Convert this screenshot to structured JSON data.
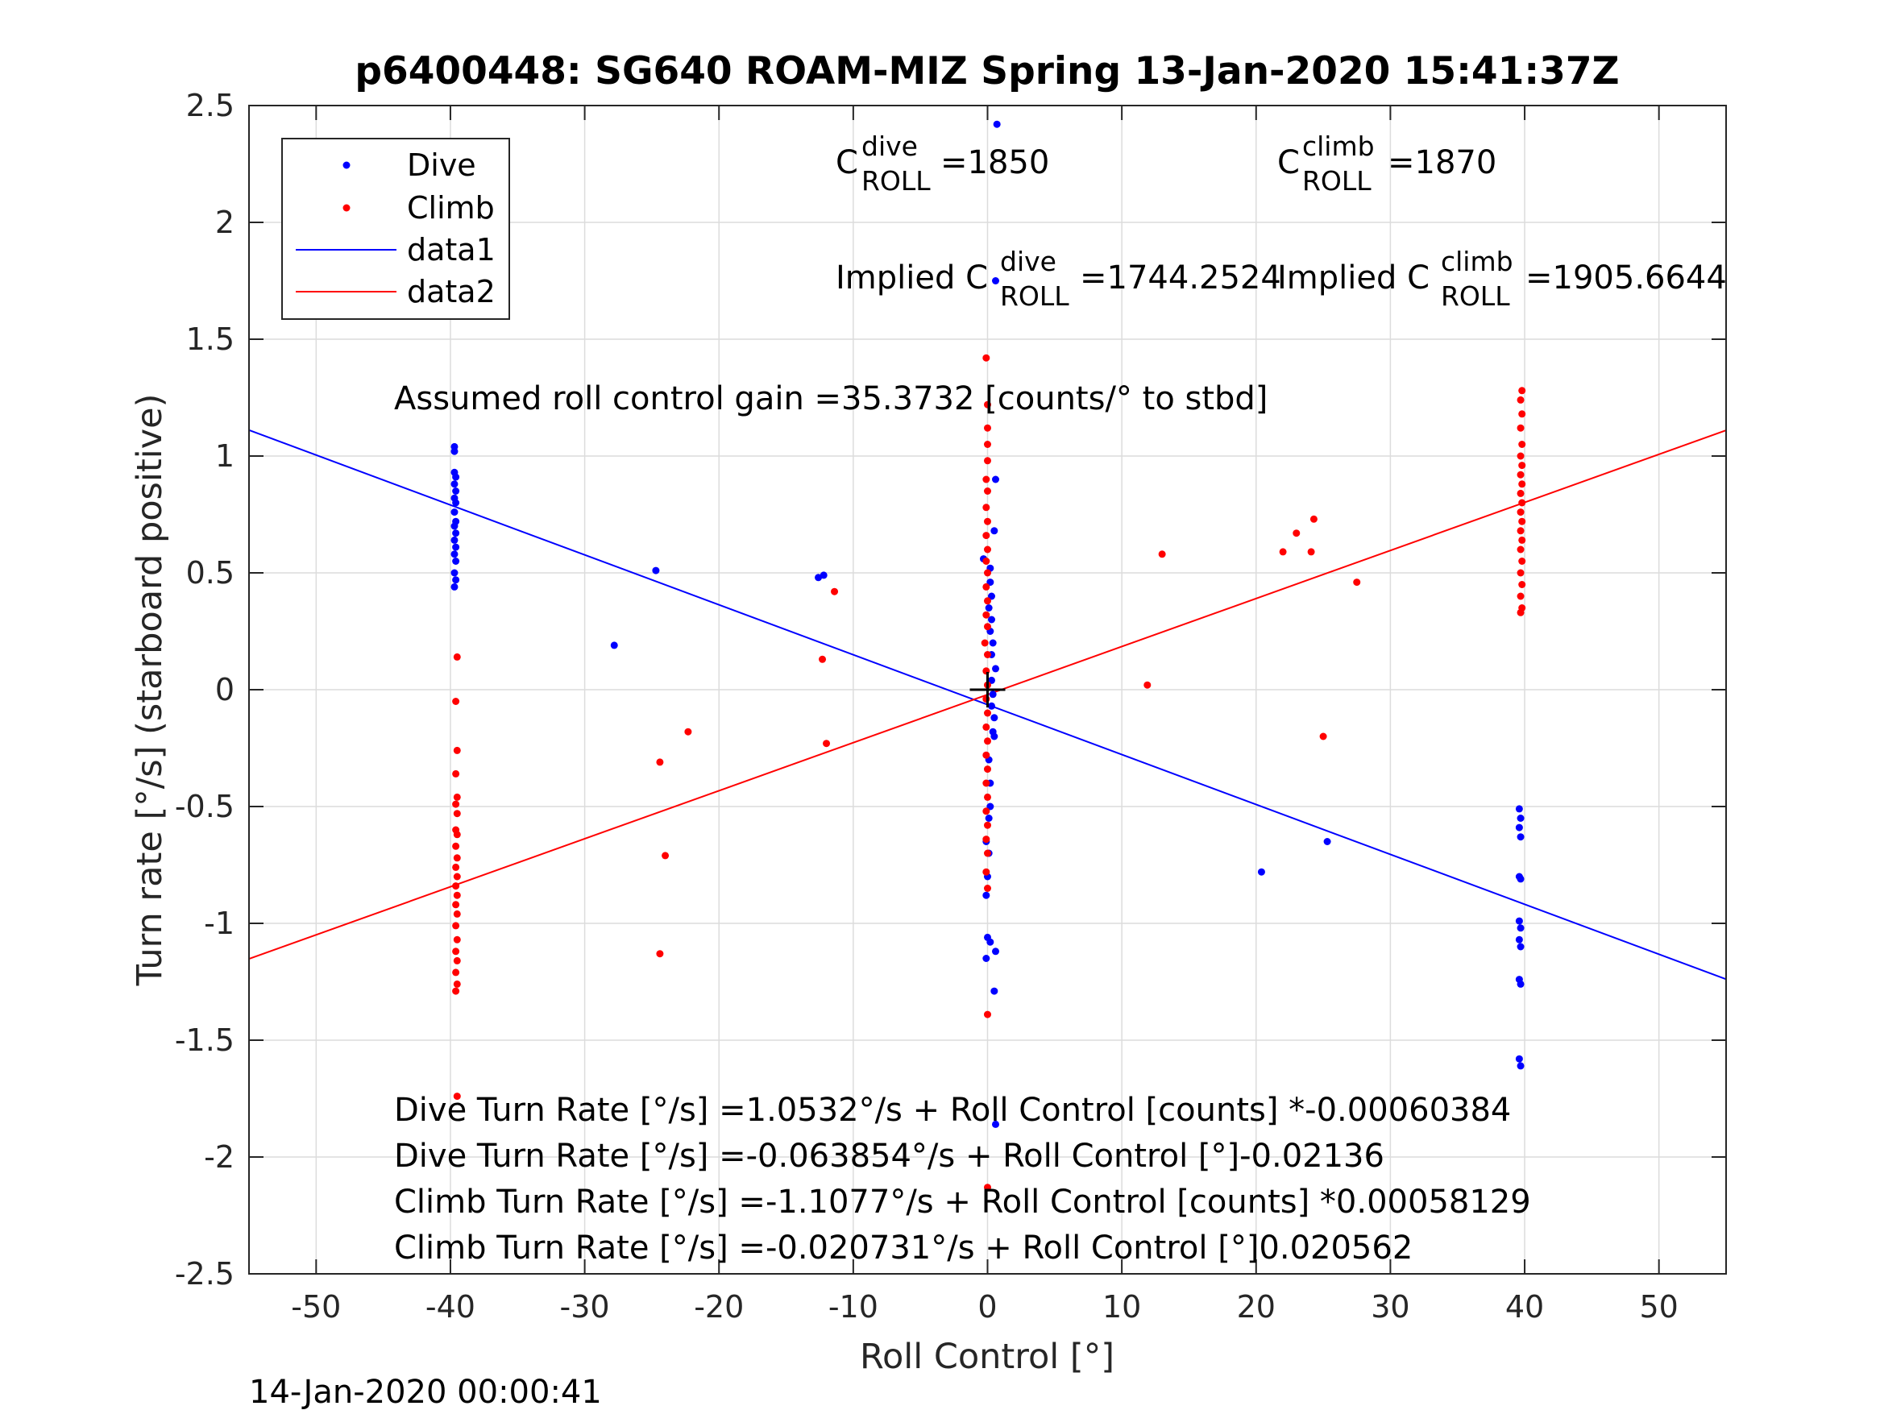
{
  "chart_data": {
    "type": "scatter",
    "title": "p6400448: SG640 ROAM-MIZ Spring 13-Jan-2020 15:41:37Z",
    "xlabel": "Roll Control [°]",
    "ylabel": "Turn rate [°/s] (starboard positive)",
    "xlim": [
      -55,
      55
    ],
    "ylim": [
      -2.5,
      2.5
    ],
    "grid": true,
    "legend_position": "top-left",
    "x_ticks": [
      -50,
      -40,
      -30,
      -20,
      -10,
      0,
      10,
      20,
      30,
      40,
      50
    ],
    "x_tick_labels": [
      "-50",
      "-40",
      "-30",
      "-20",
      "-10",
      "0",
      "10",
      "20",
      "30",
      "40",
      "50"
    ],
    "y_ticks": [
      2.5,
      2,
      1.5,
      1,
      0.5,
      0,
      -0.5,
      -1,
      -1.5,
      -2,
      -2.5
    ],
    "y_tick_labels": [
      "2.5",
      "2",
      "1.5",
      "1",
      "0.5",
      "0",
      "-0.5",
      "-1",
      "-1.5",
      "-2",
      "-2.5"
    ],
    "legend": [
      {
        "label": "Dive",
        "kind": "marker",
        "color": "#0000ff"
      },
      {
        "label": "Climb",
        "kind": "marker",
        "color": "#ff0000"
      },
      {
        "label": "data1",
        "kind": "line",
        "color": "#0000ff"
      },
      {
        "label": "data2",
        "kind": "line",
        "color": "#ff0000"
      }
    ],
    "series": [
      {
        "name": "Dive",
        "kind": "scatter",
        "color": "#0000ff",
        "points": [
          [
            -39.7,
            1.04
          ],
          [
            -39.7,
            1.02
          ],
          [
            -39.7,
            0.93
          ],
          [
            -39.6,
            0.91
          ],
          [
            -39.7,
            0.88
          ],
          [
            -39.6,
            0.85
          ],
          [
            -39.7,
            0.82
          ],
          [
            -39.6,
            0.8
          ],
          [
            -39.7,
            0.76
          ],
          [
            -39.6,
            0.72
          ],
          [
            -39.7,
            0.7
          ],
          [
            -39.6,
            0.67
          ],
          [
            -39.7,
            0.64
          ],
          [
            -39.6,
            0.61
          ],
          [
            -39.7,
            0.58
          ],
          [
            -39.6,
            0.55
          ],
          [
            -39.7,
            0.5
          ],
          [
            -39.6,
            0.47
          ],
          [
            -39.7,
            0.44
          ],
          [
            -27.8,
            0.19
          ],
          [
            -24.7,
            0.51
          ],
          [
            -12.6,
            0.48
          ],
          [
            -12.2,
            0.49
          ],
          [
            0.7,
            2.42
          ],
          [
            0.6,
            1.75
          ],
          [
            0.6,
            0.9
          ],
          [
            0.5,
            0.68
          ],
          [
            -0.3,
            0.56
          ],
          [
            0.2,
            0.52
          ],
          [
            0.2,
            0.46
          ],
          [
            0.3,
            0.4
          ],
          [
            0.1,
            0.35
          ],
          [
            0.3,
            0.3
          ],
          [
            0.2,
            0.25
          ],
          [
            0.4,
            0.2
          ],
          [
            0.3,
            0.15
          ],
          [
            0.6,
            0.09
          ],
          [
            0.3,
            0.04
          ],
          [
            0.4,
            -0.02
          ],
          [
            0.3,
            -0.07
          ],
          [
            0.5,
            -0.12
          ],
          [
            0.4,
            -0.18
          ],
          [
            0.5,
            -0.2
          ],
          [
            0.1,
            -0.3
          ],
          [
            0.2,
            -0.4
          ],
          [
            0.2,
            -0.5
          ],
          [
            0.1,
            -0.55
          ],
          [
            -0.1,
            -0.65
          ],
          [
            0.1,
            -0.7
          ],
          [
            0.0,
            -0.8
          ],
          [
            -0.1,
            -0.88
          ],
          [
            0.0,
            -1.06
          ],
          [
            -0.1,
            -1.15
          ],
          [
            0.2,
            -1.08
          ],
          [
            0.6,
            -1.12
          ],
          [
            0.5,
            -1.29
          ],
          [
            0.6,
            -1.86
          ],
          [
            20.4,
            -0.78
          ],
          [
            25.3,
            -0.65
          ],
          [
            39.6,
            -0.51
          ],
          [
            39.7,
            -0.55
          ],
          [
            39.6,
            -0.59
          ],
          [
            39.7,
            -0.63
          ],
          [
            39.6,
            -0.8
          ],
          [
            39.7,
            -0.81
          ],
          [
            39.6,
            -0.99
          ],
          [
            39.7,
            -1.02
          ],
          [
            39.6,
            -1.07
          ],
          [
            39.7,
            -1.1
          ],
          [
            39.6,
            -1.24
          ],
          [
            39.7,
            -1.26
          ],
          [
            39.6,
            -1.58
          ],
          [
            39.7,
            -1.61
          ]
        ]
      },
      {
        "name": "Climb",
        "kind": "scatter",
        "color": "#ff0000",
        "points": [
          [
            -39.5,
            0.14
          ],
          [
            -39.6,
            -0.05
          ],
          [
            -39.5,
            -0.26
          ],
          [
            -39.6,
            -0.36
          ],
          [
            -39.5,
            -0.46
          ],
          [
            -39.6,
            -0.49
          ],
          [
            -39.5,
            -0.53
          ],
          [
            -39.6,
            -0.6
          ],
          [
            -39.5,
            -0.62
          ],
          [
            -39.6,
            -0.67
          ],
          [
            -39.5,
            -0.72
          ],
          [
            -39.6,
            -0.76
          ],
          [
            -39.5,
            -0.8
          ],
          [
            -39.6,
            -0.84
          ],
          [
            -39.5,
            -0.88
          ],
          [
            -39.6,
            -0.92
          ],
          [
            -39.5,
            -0.96
          ],
          [
            -39.6,
            -1.01
          ],
          [
            -39.5,
            -1.07
          ],
          [
            -39.6,
            -1.12
          ],
          [
            -39.5,
            -1.16
          ],
          [
            -39.6,
            -1.21
          ],
          [
            -39.5,
            -1.26
          ],
          [
            -39.6,
            -1.29
          ],
          [
            -39.5,
            -1.74
          ],
          [
            -24.0,
            -0.71
          ],
          [
            -24.4,
            -0.31
          ],
          [
            -24.4,
            -1.13
          ],
          [
            -22.3,
            -0.18
          ],
          [
            -12.3,
            0.13
          ],
          [
            -11.4,
            0.42
          ],
          [
            -12.0,
            -0.23
          ],
          [
            -0.1,
            1.42
          ],
          [
            0.0,
            1.22
          ],
          [
            0.0,
            1.12
          ],
          [
            0.0,
            1.05
          ],
          [
            0.0,
            0.98
          ],
          [
            -0.1,
            0.9
          ],
          [
            0.0,
            0.85
          ],
          [
            -0.1,
            0.78
          ],
          [
            0.0,
            0.72
          ],
          [
            -0.1,
            0.66
          ],
          [
            0.0,
            0.6
          ],
          [
            -0.1,
            0.55
          ],
          [
            0.0,
            0.5
          ],
          [
            -0.1,
            0.44
          ],
          [
            0.0,
            0.38
          ],
          [
            -0.1,
            0.32
          ],
          [
            0.0,
            0.27
          ],
          [
            -0.2,
            0.2
          ],
          [
            0.0,
            0.15
          ],
          [
            -0.1,
            0.08
          ],
          [
            0.0,
            0.02
          ],
          [
            -0.1,
            -0.04
          ],
          [
            0.0,
            -0.1
          ],
          [
            -0.1,
            -0.16
          ],
          [
            0.0,
            -0.22
          ],
          [
            -0.1,
            -0.28
          ],
          [
            0.0,
            -0.34
          ],
          [
            -0.1,
            -0.4
          ],
          [
            0.0,
            -0.46
          ],
          [
            -0.1,
            -0.52
          ],
          [
            0.0,
            -0.58
          ],
          [
            -0.1,
            -0.64
          ],
          [
            0.0,
            -0.7
          ],
          [
            -0.1,
            -0.78
          ],
          [
            0.0,
            -0.85
          ],
          [
            0.0,
            -1.39
          ],
          [
            0.0,
            -2.13
          ],
          [
            11.9,
            0.02
          ],
          [
            13.0,
            0.58
          ],
          [
            22.0,
            0.59
          ],
          [
            23.0,
            0.67
          ],
          [
            24.1,
            0.59
          ],
          [
            24.3,
            0.73
          ],
          [
            25.0,
            -0.2
          ],
          [
            27.5,
            0.46
          ],
          [
            39.8,
            1.28
          ],
          [
            39.7,
            1.24
          ],
          [
            39.8,
            1.18
          ],
          [
            39.7,
            1.12
          ],
          [
            39.8,
            1.05
          ],
          [
            39.7,
            1.0
          ],
          [
            39.8,
            0.96
          ],
          [
            39.7,
            0.92
          ],
          [
            39.8,
            0.88
          ],
          [
            39.7,
            0.84
          ],
          [
            39.8,
            0.8
          ],
          [
            39.7,
            0.76
          ],
          [
            39.8,
            0.72
          ],
          [
            39.7,
            0.68
          ],
          [
            39.8,
            0.64
          ],
          [
            39.7,
            0.6
          ],
          [
            39.8,
            0.55
          ],
          [
            39.7,
            0.5
          ],
          [
            39.8,
            0.45
          ],
          [
            39.7,
            0.4
          ],
          [
            39.8,
            0.35
          ],
          [
            39.7,
            0.33
          ]
        ]
      },
      {
        "name": "data1",
        "kind": "line",
        "color": "#0000ff",
        "points": [
          [
            -55,
            1.111
          ],
          [
            55,
            -1.239
          ]
        ]
      },
      {
        "name": "data2",
        "kind": "line",
        "color": "#ff0000",
        "points": [
          [
            -55,
            -1.152
          ],
          [
            55,
            1.11
          ]
        ]
      }
    ],
    "annotations": {
      "c_roll_dive_prefix": "C",
      "c_roll_dive_sup": "dive",
      "c_roll_dive_sub": "ROLL",
      "c_roll_dive_value": "=1850",
      "c_roll_climb_prefix": "C",
      "c_roll_climb_sup": "climb",
      "c_roll_climb_sub": "ROLL",
      "c_roll_climb_value": "=1870",
      "implied_dive_prefix": "Implied C",
      "implied_dive_sup": "dive",
      "implied_dive_sub": "ROLL",
      "implied_dive_value": "=1744.2524",
      "implied_climb_prefix": "Implied C",
      "implied_climb_sup": "climb",
      "implied_climb_sub": "ROLL",
      "implied_climb_value": "=1905.6644",
      "gain": "Assumed roll control gain =35.3732 [counts/° to stbd]",
      "eq1": "Dive Turn Rate [°/s] =1.0532°/s + Roll Control [counts] *-0.00060384",
      "eq2": "Dive Turn Rate [°/s] =-0.063854°/s + Roll Control [°]-0.02136",
      "eq3": "Climb Turn Rate [°/s] =-1.1077°/s + Roll Control [counts] *0.00058129",
      "eq4": "Climb Turn Rate [°/s] =-0.020731°/s + Roll Control [°]0.020562"
    },
    "center_marker": {
      "x": 0,
      "y": 0,
      "symbol": "+"
    },
    "timestamp": "14-Jan-2020 00:00:41"
  }
}
